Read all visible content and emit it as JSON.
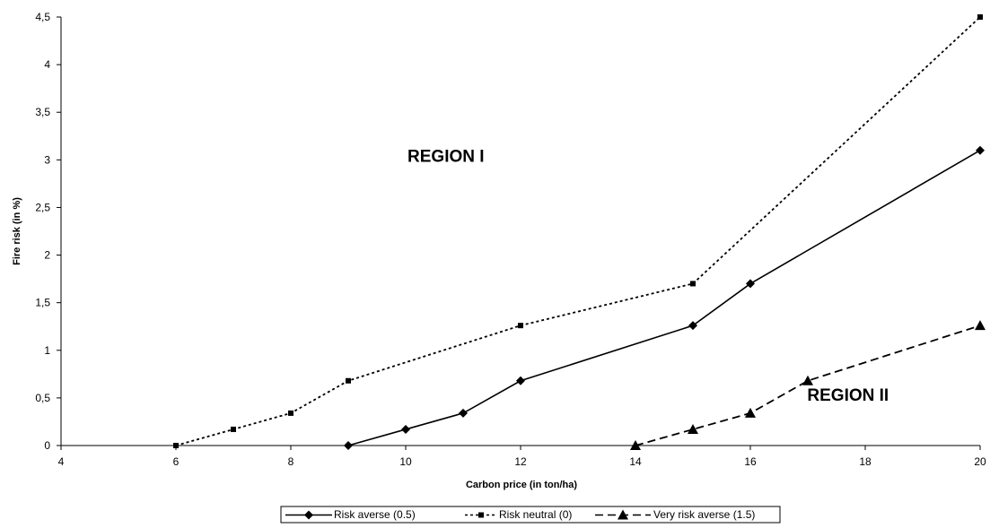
{
  "chart_data": {
    "type": "line",
    "title": "",
    "xlabel": "Carbon price (in ton/ha)",
    "ylabel": "Fire risk (in %)",
    "xlim": [
      4,
      20
    ],
    "ylim": [
      0,
      4.5
    ],
    "x_ticks": [
      4,
      6,
      8,
      10,
      12,
      14,
      16,
      18,
      20
    ],
    "x_tick_labels": [
      "4",
      "6",
      "8",
      "10",
      "12",
      "14",
      "16",
      "18",
      "20"
    ],
    "y_ticks": [
      0,
      0.5,
      1,
      1.5,
      2,
      2.5,
      3,
      3.5,
      4,
      4.5
    ],
    "y_tick_labels": [
      "0",
      "0,5",
      "1",
      "1,5",
      "2",
      "2,5",
      "3",
      "3,5",
      "4",
      "4,5"
    ],
    "grid": false,
    "legend_position": "bottom",
    "series": [
      {
        "name": "Risk averse (0.5)",
        "line_style": "solid",
        "marker": "diamond",
        "color": "#000000",
        "points": [
          [
            9,
            0
          ],
          [
            10,
            0.17
          ],
          [
            11,
            0.34
          ],
          [
            12,
            0.68
          ],
          [
            15,
            1.26
          ],
          [
            16,
            1.7
          ],
          [
            20,
            3.1
          ]
        ]
      },
      {
        "name": "Risk neutral (0)",
        "line_style": "dotted",
        "marker": "square",
        "color": "#000000",
        "points": [
          [
            6,
            0
          ],
          [
            7,
            0.17
          ],
          [
            8,
            0.34
          ],
          [
            9,
            0.68
          ],
          [
            12,
            1.26
          ],
          [
            15,
            1.7
          ],
          [
            20,
            4.5
          ]
        ]
      },
      {
        "name": "Very risk averse (1.5)",
        "line_style": "dashed",
        "marker": "triangle",
        "color": "#000000",
        "points": [
          [
            14,
            0
          ],
          [
            15,
            0.17
          ],
          [
            16,
            0.34
          ],
          [
            17,
            0.68
          ],
          [
            20,
            1.26
          ]
        ]
      }
    ],
    "annotations": [
      {
        "text": "REGION I",
        "x": 10.7,
        "y": 2.98
      },
      {
        "text": "REGION II",
        "x": 17.7,
        "y": 0.47
      }
    ]
  }
}
